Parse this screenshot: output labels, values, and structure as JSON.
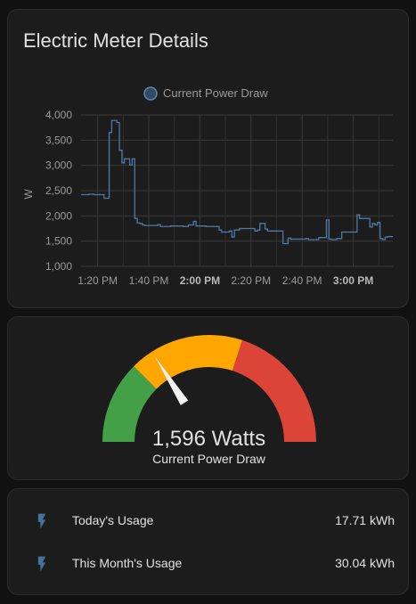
{
  "chart_card": {
    "title": "Electric Meter Details"
  },
  "chart_data": {
    "type": "line",
    "legend": {
      "position": "top",
      "entries": [
        "Current Power Draw"
      ]
    },
    "series": [
      {
        "name": "Current Power Draw",
        "color": "#4e79a7",
        "step": true,
        "x_minutes": [
          0,
          3,
          5,
          7,
          9,
          11,
          12,
          14,
          15,
          16,
          17,
          19,
          20,
          21,
          22,
          23,
          24,
          25,
          30,
          31,
          35,
          40,
          42,
          44,
          45,
          49,
          54,
          55,
          58,
          59,
          60,
          62,
          68,
          69,
          70,
          72,
          73,
          78,
          79,
          81,
          82,
          85,
          87,
          88,
          89,
          93,
          96,
          97,
          98,
          100,
          102,
          108,
          109,
          113,
          114,
          115,
          116,
          117,
          118,
          119,
          120
        ],
        "values": [
          2420,
          2430,
          2420,
          2420,
          2350,
          3650,
          3890,
          3850,
          3300,
          3050,
          3130,
          3010,
          3130,
          1950,
          1860,
          1850,
          1820,
          1810,
          1830,
          1790,
          1800,
          1790,
          1820,
          1890,
          1800,
          1790,
          1720,
          1680,
          1700,
          1580,
          1720,
          1750,
          1700,
          1720,
          1850,
          1740,
          1700,
          1700,
          1450,
          1560,
          1540,
          1540,
          1540,
          1550,
          1530,
          1570,
          1920,
          1540,
          1530,
          1550,
          1680,
          2020,
          1950,
          1780,
          1850,
          1820,
          1870,
          1550,
          1530,
          1580,
          1590
        ]
      }
    ],
    "x_tick_labels": [
      "1:20 PM",
      "1:40 PM",
      "2:00 PM",
      "2:20 PM",
      "2:40 PM",
      "3:00 PM"
    ],
    "x_bold_ticks": [
      2,
      5
    ],
    "y_tick_labels": [
      "1,000",
      "1,500",
      "2,000",
      "2,500",
      "3,000",
      "3,500",
      "4,000"
    ],
    "y_ticks": [
      1000,
      1500,
      2000,
      2500,
      3000,
      3500,
      4000
    ],
    "ylim": [
      1000,
      4000
    ],
    "ylabel": "W",
    "grid": true
  },
  "gauge": {
    "value_text": "1,596 Watts",
    "name": "Current Power Draw",
    "value": 1596,
    "min": 0,
    "max": 5000,
    "segments": [
      {
        "from": 0,
        "to": 1250,
        "color": "#43a047"
      },
      {
        "from": 1250,
        "to": 3000,
        "color": "#ffa600"
      },
      {
        "from": 3000,
        "to": 5000,
        "color": "#db4437"
      }
    ]
  },
  "entities": [
    {
      "icon": "flash-icon",
      "name": "Today's Usage",
      "state": "17.71 kWh"
    },
    {
      "icon": "flash-icon",
      "name": "This Month's Usage",
      "state": "30.04 kWh"
    }
  ],
  "colors": {
    "icon": "#44739e",
    "line": "#4e79a7"
  }
}
